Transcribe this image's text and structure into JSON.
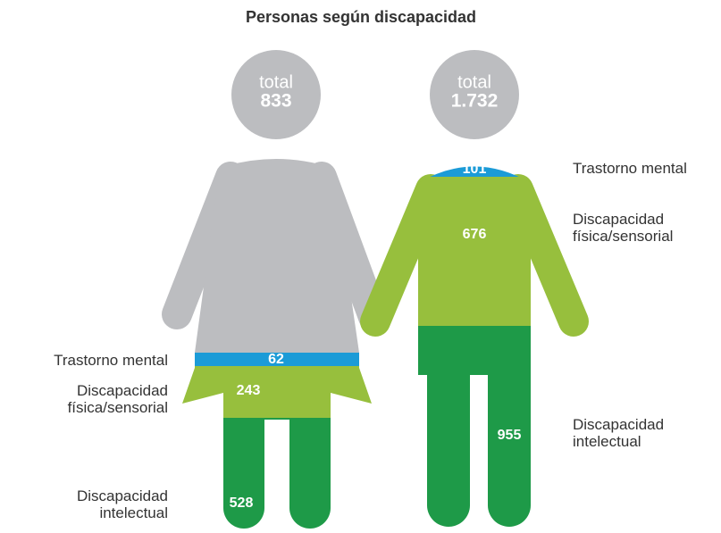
{
  "chart_data": {
    "type": "pictogram",
    "title": "Personas según discapacidad",
    "total_label": "total",
    "figures": [
      {
        "total": 833,
        "base_color": "#bcbdc0",
        "segments": [
          {
            "name": "Trastorno mental",
            "value": 62,
            "color": "#1b9bd7"
          },
          {
            "name": "Discapacidad física/sensorial",
            "value": 243,
            "color": "#97bf3d"
          },
          {
            "name": "Discapacidad intelectual",
            "value": 528,
            "color": "#1e9a48"
          }
        ]
      },
      {
        "total": {
          "value": 1732,
          "label": "1.732"
        },
        "base_color": "#97bf3d",
        "segments": [
          {
            "name": "Trastorno mental",
            "value": 101,
            "color": "#1b9bd7"
          },
          {
            "name": "Discapacidad física/sensorial",
            "value": 676,
            "color": "#97bf3d"
          },
          {
            "name": "Discapacidad intelectual",
            "value": 955,
            "color": "#1e9a48"
          }
        ]
      }
    ]
  }
}
